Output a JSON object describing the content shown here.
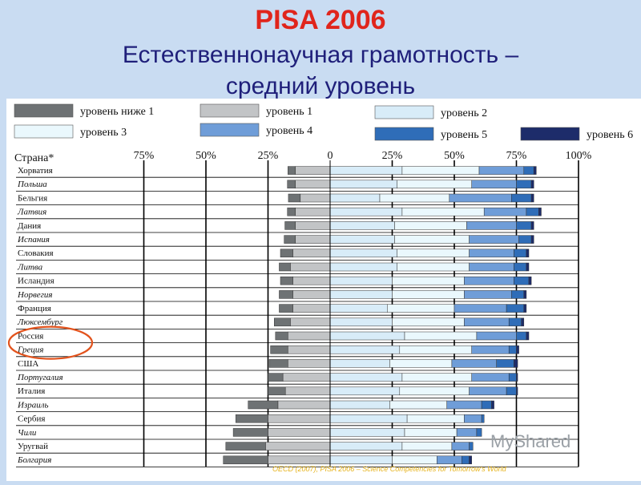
{
  "title": "PISA 2006",
  "subtitle_line1": "Естественнонаучная грамотность –",
  "subtitle_line2": "средний уровень",
  "legend": [
    {
      "label": "уровень ниже 1",
      "color": "#6e7274"
    },
    {
      "label": "уровень 1",
      "color": "#c2c4c6"
    },
    {
      "label": "уровень 2",
      "color": "#d8ecf8"
    },
    {
      "label": "уровень 3",
      "color": "#eaf8fd"
    },
    {
      "label": "уровень 4",
      "color": "#6f9dd8"
    },
    {
      "label": "уровень 5",
      "color": "#2f6db8"
    },
    {
      "label": "уровень 6",
      "color": "#1d2c6a"
    }
  ],
  "watermark": "MyShared",
  "footer": "OECD (2007), PISA 2006 – Science Competencies for Tomorrow's World",
  "chart_data": {
    "type": "bar",
    "stacked": "diverging",
    "axis_title": "Страна*",
    "tick_labels": [
      "75%",
      "50%",
      "25%",
      "0",
      "25%",
      "50%",
      "75%",
      "100%"
    ],
    "tick_values": [
      -75,
      -50,
      -25,
      0,
      25,
      50,
      75,
      100
    ],
    "xlim": [
      -75,
      100
    ],
    "highlighted": "Россия",
    "series_names": [
      "уровень ниже 1",
      "уровень 1",
      "уровень 2",
      "уровень 3",
      "уровень 4",
      "уровень 5",
      "уровень 6"
    ],
    "colors": [
      "#6e7274",
      "#c2c4c6",
      "#d8ecf8",
      "#eaf8fd",
      "#6f9dd8",
      "#2f6db8",
      "#1d2c6a"
    ],
    "countries": [
      {
        "name": "Хорватия",
        "values": [
          3.0,
          14.0,
          29.0,
          31.0,
          18.0,
          4.0,
          1.0
        ]
      },
      {
        "name": "Польша",
        "values": [
          3.2,
          14.0,
          27.0,
          30.0,
          18.0,
          6.0,
          1.0
        ]
      },
      {
        "name": "Бельгия",
        "values": [
          4.8,
          12.0,
          20.0,
          28.0,
          25.0,
          8.0,
          1.0
        ]
      },
      {
        "name": "Латвия",
        "values": [
          3.2,
          14.0,
          29.0,
          33.0,
          17.0,
          5.0,
          1.0
        ]
      },
      {
        "name": "Дания",
        "values": [
          4.2,
          14.0,
          26.0,
          29.0,
          20.0,
          6.0,
          1.0
        ]
      },
      {
        "name": "Испания",
        "values": [
          4.5,
          14.0,
          26.0,
          30.0,
          20.0,
          5.0,
          1.0
        ]
      },
      {
        "name": "Словакия",
        "values": [
          5.0,
          15.0,
          27.0,
          29.0,
          18.0,
          5.0,
          1.0
        ]
      },
      {
        "name": "Литва",
        "values": [
          4.5,
          16.0,
          27.0,
          29.0,
          18.0,
          5.0,
          1.0
        ]
      },
      {
        "name": "Исландия",
        "values": [
          5.0,
          15.0,
          25.0,
          29.0,
          20.0,
          6.0,
          1.0
        ]
      },
      {
        "name": "Норвегия",
        "values": [
          5.5,
          15.0,
          25.0,
          29.0,
          19.0,
          5.0,
          1.0
        ]
      },
      {
        "name": "Франция",
        "values": [
          5.5,
          15.0,
          23.0,
          27.0,
          21.0,
          7.0,
          1.0
        ]
      },
      {
        "name": "Люксембург",
        "values": [
          6.5,
          16.0,
          25.0,
          29.0,
          18.0,
          5.0,
          1.0
        ]
      },
      {
        "name": "Россия",
        "values": [
          5.0,
          17.0,
          30.0,
          29.0,
          16.0,
          4.0,
          1.0
        ]
      },
      {
        "name": "Греция",
        "values": [
          7.0,
          17.0,
          28.0,
          29.0,
          15.0,
          3.0,
          1.0
        ]
      },
      {
        "name": "США",
        "values": [
          7.5,
          17.0,
          24.0,
          25.0,
          18.0,
          7.0,
          1.5
        ]
      },
      {
        "name": "Португалия",
        "values": [
          6.0,
          19.0,
          29.0,
          28.0,
          15.0,
          3.0,
          0.5
        ]
      },
      {
        "name": "Италия",
        "values": [
          7.0,
          18.0,
          28.0,
          28.0,
          15.0,
          4.0,
          0.5
        ]
      },
      {
        "name": "Израиль",
        "values": [
          12.0,
          21.0,
          24.0,
          23.0,
          14.0,
          4.0,
          1.0
        ]
      },
      {
        "name": "Сербия",
        "values": [
          13.0,
          25.0,
          31.0,
          23.0,
          7.0,
          1.0,
          0.0
        ]
      },
      {
        "name": "Чили",
        "values": [
          14.0,
          25.0,
          30.0,
          21.0,
          8.0,
          2.0,
          0.0
        ]
      },
      {
        "name": "Уругвай",
        "values": [
          16.0,
          26.0,
          29.0,
          20.0,
          7.0,
          1.5,
          0.0
        ]
      },
      {
        "name": "Болгария",
        "values": [
          18.0,
          25.0,
          25.0,
          18.0,
          10.0,
          3.0,
          1.0
        ]
      }
    ]
  }
}
